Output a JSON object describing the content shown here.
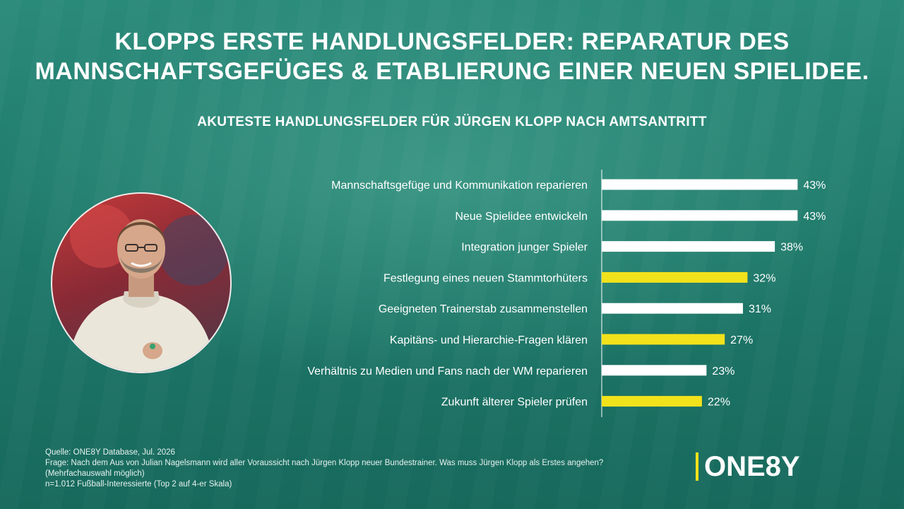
{
  "header": {
    "title_line1": "KLOPPS ERSTE HANDLUNGSFELDER: REPARATUR DES",
    "title_line2": "MANNSCHAFTSGEFÜGES & ETABLIERUNG EINER NEUEN SPIELIDEE."
  },
  "chart_data": {
    "type": "bar",
    "orientation": "horizontal",
    "title": "AKUTESTE HANDLUNGSFELDER FÜR JÜRGEN KLOPP NACH AMTSANTRITT",
    "categories": [
      "Mannschaftsgefüge und Kommunikation reparieren",
      "Neue Spielidee entwickeln",
      "Integration junger Spieler",
      "Festlegung eines neuen Stammtorhüters",
      "Geeigneten Trainerstab zusammenstellen",
      "Kapitäns- und Hierarchie-Fragen klären",
      "Verhältnis zu Medien und Fans nach der WM reparieren",
      "Zukunft älterer Spieler prüfen"
    ],
    "values": [
      43,
      43,
      38,
      32,
      31,
      27,
      23,
      22
    ],
    "value_labels": [
      "43%",
      "43%",
      "38%",
      "32%",
      "31%",
      "27%",
      "23%",
      "22%"
    ],
    "highlighted": [
      false,
      false,
      false,
      true,
      false,
      true,
      false,
      true
    ],
    "colors": {
      "default": "#ffffff",
      "highlight": "#f2e21b"
    },
    "xlim": [
      0,
      100
    ],
    "grid": false,
    "legend": "none"
  },
  "footer": {
    "source": "Quelle: ONE8Y Database, Jul. 2026",
    "question": "Frage: Nach dem Aus von Julian Nagelsmann wird aller Voraussicht nach Jürgen Klopp neuer Bundestrainer. Was muss Jürgen Klopp als Erstes angehen?",
    "note": "(Mehrfachauswahl möglich)",
    "sample": "n=1.012 Fußball-Interessierte (Top 2 auf 4-er Skala)"
  },
  "logo": {
    "text": "ONE8Y",
    "accent": "#f2e21b"
  },
  "photo": {
    "icon": "person-portrait-icon"
  }
}
